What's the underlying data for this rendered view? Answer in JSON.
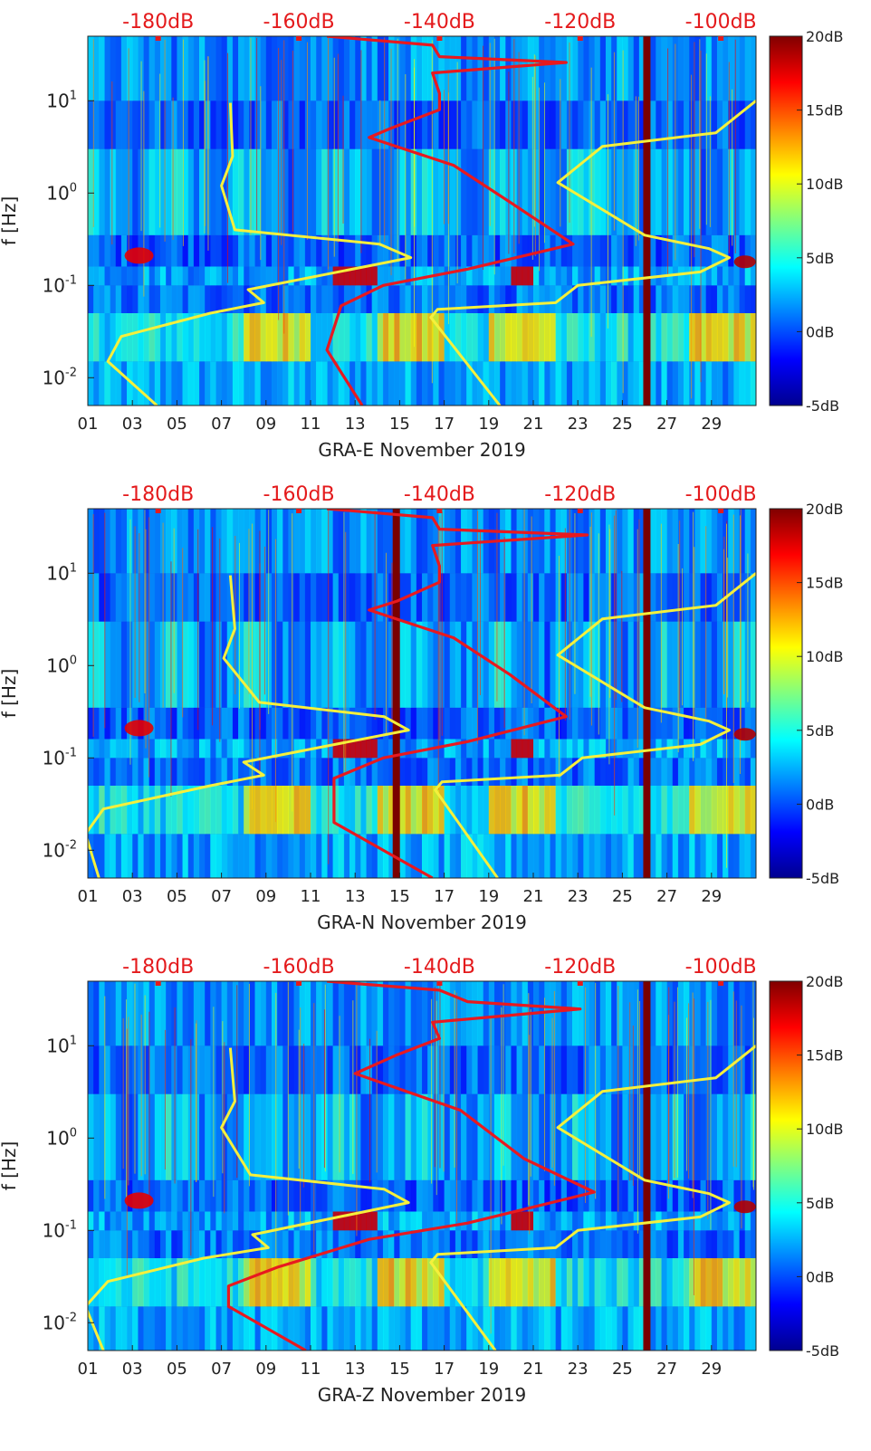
{
  "colorbar": {
    "colors": [
      "#00008f",
      "#0000ff",
      "#0080ff",
      "#00ffff",
      "#80ff80",
      "#ffff00",
      "#ff8000",
      "#ff0000",
      "#800000"
    ],
    "ticks": [
      "20dB",
      "15dB",
      "10dB",
      "5dB",
      "0dB",
      "-5dB"
    ]
  },
  "colors": {
    "psd_line": "#e8191f",
    "model_line": "#f5f03c",
    "dB_axis_text": "#e41a1c",
    "background_field": "#1a55d6"
  },
  "chart_data": [
    {
      "type": "heatmap",
      "title": "GRA-E November 2019",
      "xlabel": "GRA-E November 2019",
      "ylabel": "f [Hz]",
      "x_ticks": [
        "01",
        "03",
        "05",
        "07",
        "09",
        "11",
        "13",
        "15",
        "17",
        "19",
        "21",
        "23",
        "25",
        "27",
        "29"
      ],
      "y_ticks": [
        "10^1",
        "10^0",
        "10^-1",
        "10^-2"
      ],
      "top_axis_ticks": [
        "-180dB",
        "-160dB",
        "-140dB",
        "-120dB",
        "-100dB"
      ],
      "xlim": [
        1,
        31
      ],
      "ylim_hz": [
        0.005,
        50
      ],
      "top_axis_range_dB": [
        -190,
        -95
      ],
      "color_range_dB": [
        -5,
        20
      ],
      "gap_days": [
        26.1
      ],
      "red_series_psd": {
        "name": "PSD (top dB axis)",
        "points": [
          [
            -151.0,
            0.005
          ],
          [
            -156.0,
            0.02
          ],
          [
            -154.0,
            0.06
          ],
          [
            -148.0,
            0.1
          ],
          [
            -136.0,
            0.15
          ],
          [
            -121.0,
            0.28
          ],
          [
            -130.0,
            0.8
          ],
          [
            -138.0,
            2.0
          ],
          [
            -150.0,
            4.0
          ],
          [
            -147.0,
            5.0
          ],
          [
            -140.0,
            8.0
          ],
          [
            -140.0,
            12.0
          ],
          [
            -141.0,
            20.0
          ],
          [
            -122.0,
            26.0
          ],
          [
            -140.0,
            30.0
          ],
          [
            -141.0,
            40.0
          ],
          [
            -156.0,
            50.0
          ]
        ]
      },
      "yellow_series_model": {
        "name": "Noise model curve",
        "points": [
          [
            4.1,
            0.005
          ],
          [
            1.9,
            0.015
          ],
          [
            2.5,
            0.028
          ],
          [
            6.5,
            0.05
          ],
          [
            8.9,
            0.065
          ],
          [
            8.2,
            0.09
          ],
          [
            15.5,
            0.2
          ],
          [
            14.1,
            0.28
          ],
          [
            7.6,
            0.4
          ],
          [
            7.0,
            1.2
          ],
          [
            7.5,
            2.5
          ],
          [
            7.4,
            9.5
          ],
          [
            -1,
            -1
          ],
          [
            19.5,
            0.005
          ],
          [
            16.4,
            0.045
          ],
          [
            16.7,
            0.055
          ],
          [
            22.0,
            0.065
          ],
          [
            23.0,
            0.1
          ],
          [
            28.5,
            0.14
          ],
          [
            29.8,
            0.2
          ],
          [
            28.9,
            0.25
          ],
          [
            26.0,
            0.35
          ],
          [
            22.1,
            1.3
          ],
          [
            24.1,
            3.2
          ],
          [
            29.2,
            4.5
          ],
          [
            31.0,
            10.0
          ]
        ]
      }
    },
    {
      "type": "heatmap",
      "title": "GRA-N November 2019",
      "xlabel": "GRA-N November 2019",
      "ylabel": "f [Hz]",
      "x_ticks": [
        "01",
        "03",
        "05",
        "07",
        "09",
        "11",
        "13",
        "15",
        "17",
        "19",
        "21",
        "23",
        "25",
        "27",
        "29"
      ],
      "y_ticks": [
        "10^1",
        "10^0",
        "10^-1",
        "10^-2"
      ],
      "top_axis_ticks": [
        "-180dB",
        "-160dB",
        "-140dB",
        "-120dB",
        "-100dB"
      ],
      "xlim": [
        1,
        31
      ],
      "ylim_hz": [
        0.005,
        50
      ],
      "top_axis_range_dB": [
        -190,
        -95
      ],
      "color_range_dB": [
        -5,
        20
      ],
      "gap_days": [
        14.85,
        26.1
      ],
      "red_series_psd": {
        "name": "PSD (top dB axis)",
        "points": [
          [
            -141.0,
            0.005
          ],
          [
            -155.0,
            0.02
          ],
          [
            -155.0,
            0.06
          ],
          [
            -148.0,
            0.1
          ],
          [
            -136.0,
            0.15
          ],
          [
            -122.0,
            0.28
          ],
          [
            -130.0,
            0.8
          ],
          [
            -138.0,
            2.0
          ],
          [
            -150.0,
            4.0
          ],
          [
            -146.0,
            5.0
          ],
          [
            -140.0,
            8.0
          ],
          [
            -140.0,
            12.0
          ],
          [
            -141.0,
            20.0
          ],
          [
            -119.0,
            26.0
          ],
          [
            -140.0,
            30.0
          ],
          [
            -141.0,
            40.0
          ],
          [
            -156.0,
            50.0
          ]
        ]
      },
      "yellow_series_model": {
        "name": "Noise model curve",
        "points": [
          [
            1.5,
            0.005
          ],
          [
            0.9,
            0.015
          ],
          [
            1.7,
            0.028
          ],
          [
            6.5,
            0.05
          ],
          [
            8.9,
            0.065
          ],
          [
            8.0,
            0.09
          ],
          [
            15.4,
            0.2
          ],
          [
            14.3,
            0.28
          ],
          [
            8.7,
            0.4
          ],
          [
            7.1,
            1.2
          ],
          [
            7.6,
            2.5
          ],
          [
            7.4,
            9.5
          ],
          [
            -1,
            -1
          ],
          [
            19.4,
            0.005
          ],
          [
            16.6,
            0.045
          ],
          [
            16.9,
            0.055
          ],
          [
            22.2,
            0.065
          ],
          [
            23.2,
            0.1
          ],
          [
            28.5,
            0.14
          ],
          [
            29.8,
            0.2
          ],
          [
            28.9,
            0.25
          ],
          [
            26.0,
            0.35
          ],
          [
            22.1,
            1.3
          ],
          [
            24.1,
            3.2
          ],
          [
            29.2,
            4.5
          ],
          [
            31.0,
            10.0
          ]
        ]
      }
    },
    {
      "type": "heatmap",
      "title": "GRA-Z November 2019",
      "xlabel": "GRA-Z November 2019",
      "ylabel": "f [Hz]",
      "x_ticks": [
        "01",
        "03",
        "05",
        "07",
        "09",
        "11",
        "13",
        "15",
        "17",
        "19",
        "21",
        "23",
        "25",
        "27",
        "29"
      ],
      "y_ticks": [
        "10^1",
        "10^0",
        "10^-1",
        "10^-2"
      ],
      "top_axis_ticks": [
        "-180dB",
        "-160dB",
        "-140dB",
        "-120dB",
        "-100dB"
      ],
      "xlim": [
        1,
        31
      ],
      "ylim_hz": [
        0.005,
        50
      ],
      "top_axis_range_dB": [
        -190,
        -95
      ],
      "color_range_dB": [
        -5,
        20
      ],
      "gap_days": [
        26.1
      ],
      "red_series_psd": {
        "name": "PSD (top dB axis)",
        "points": [
          [
            -159.0,
            0.005
          ],
          [
            -170.0,
            0.015
          ],
          [
            -170.0,
            0.025
          ],
          [
            -163.0,
            0.04
          ],
          [
            -150.0,
            0.08
          ],
          [
            -136.0,
            0.12
          ],
          [
            -118.0,
            0.26
          ],
          [
            -128.0,
            0.6
          ],
          [
            -137.0,
            2.0
          ],
          [
            -152.0,
            5.0
          ],
          [
            -146.0,
            8.0
          ],
          [
            -140.0,
            12.0
          ],
          [
            -141.0,
            18.0
          ],
          [
            -120.0,
            25.0
          ],
          [
            -136.0,
            30.0
          ],
          [
            -140.0,
            40.0
          ],
          [
            -156.0,
            50.0
          ]
        ]
      },
      "yellow_series_model": {
        "name": "Noise model curve",
        "points": [
          [
            1.7,
            0.005
          ],
          [
            0.9,
            0.015
          ],
          [
            1.9,
            0.028
          ],
          [
            6.2,
            0.05
          ],
          [
            9.1,
            0.065
          ],
          [
            8.4,
            0.09
          ],
          [
            15.4,
            0.2
          ],
          [
            14.3,
            0.28
          ],
          [
            8.3,
            0.4
          ],
          [
            7.0,
            1.3
          ],
          [
            7.6,
            2.5
          ],
          [
            7.4,
            9.5
          ],
          [
            -1,
            -1
          ],
          [
            19.3,
            0.005
          ],
          [
            16.4,
            0.045
          ],
          [
            16.7,
            0.055
          ],
          [
            22.0,
            0.065
          ],
          [
            23.0,
            0.1
          ],
          [
            28.5,
            0.14
          ],
          [
            29.8,
            0.2
          ],
          [
            28.9,
            0.25
          ],
          [
            26.0,
            0.35
          ],
          [
            22.1,
            1.3
          ],
          [
            24.1,
            3.2
          ],
          [
            29.2,
            4.5
          ],
          [
            31.0,
            10.0
          ]
        ]
      }
    }
  ]
}
